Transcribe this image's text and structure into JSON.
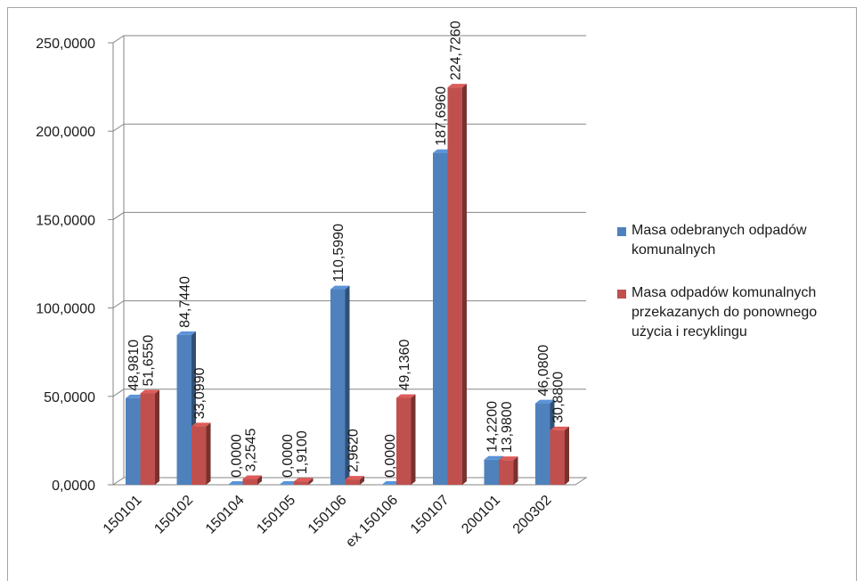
{
  "chart_data": {
    "type": "bar",
    "categories": [
      "150101",
      "150102",
      "150104",
      "150105",
      "150106",
      "ex 150106",
      "150107",
      "200101",
      "200302"
    ],
    "series": [
      {
        "name": "Masa odebranych odpadów komunalnych",
        "color": "#4f81bd",
        "values": [
          48.981,
          84.744,
          0.0,
          0.0,
          110.599,
          0.0,
          187.696,
          14.22,
          46.08
        ],
        "labels": [
          "48,9810",
          "84,7440",
          "0,0000",
          "0,0000",
          "110,5990",
          "0,0000",
          "187,6960",
          "14,2200",
          "46,0800"
        ]
      },
      {
        "name": "Masa odpadów komunalnych przekazanych do ponownego użycia i recyklingu",
        "color": "#c0504d",
        "values": [
          51.655,
          33.099,
          3.2545,
          1.91,
          2.962,
          49.136,
          224.726,
          13.98,
          30.88
        ],
        "labels": [
          "51,6550",
          "33,0990",
          "3,2545",
          "1,9100",
          "2,9620",
          "49,1360",
          "224,7260",
          "13,9800",
          "30,8800"
        ]
      }
    ],
    "ylim": [
      0,
      250
    ],
    "yticks": [
      "0,0000",
      "50,0000",
      "100,0000",
      "150,0000",
      "200,0000",
      "250,0000"
    ],
    "grid": true,
    "legend_position": "right",
    "style": "3d-clustered-bar"
  }
}
